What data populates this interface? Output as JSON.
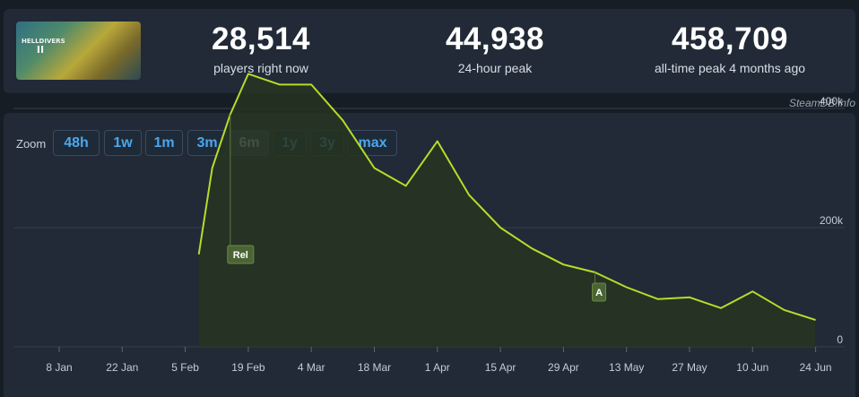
{
  "game": {
    "cover_alt": "HELLDIVERS 2",
    "cover_logo_line1": "HELLDIVERS",
    "cover_logo_line2": "II"
  },
  "stats": [
    {
      "value": "28,514",
      "label": "players right now"
    },
    {
      "value": "44,938",
      "label": "24-hour peak"
    },
    {
      "value": "458,709",
      "label": "all-time peak 4 months ago"
    }
  ],
  "credit": "SteamDB.info",
  "zoom": {
    "label": "Zoom",
    "options": [
      "48h",
      "1w",
      "1m",
      "3m",
      "6m",
      "1y",
      "3y",
      "max"
    ],
    "selected": "6m"
  },
  "chart_data": {
    "type": "area",
    "title": "",
    "xlabel": "",
    "ylabel": "",
    "x_ticks": [
      "8 Jan",
      "22 Jan",
      "5 Feb",
      "19 Feb",
      "4 Mar",
      "18 Mar",
      "1 Apr",
      "15 Apr",
      "29 Apr",
      "13 May",
      "27 May",
      "10 Jun",
      "24 Jun"
    ],
    "y_ticks": [
      "0",
      "200k",
      "400k"
    ],
    "ylim": [
      0,
      600000
    ],
    "grid": true,
    "series": [
      {
        "x": [
          "8 Feb",
          "11 Feb",
          "15 Feb",
          "19 Feb",
          "26 Feb",
          "4 Mar",
          "11 Mar",
          "18 Mar",
          "25 Mar",
          "1 Apr",
          "8 Apr",
          "15 Apr",
          "22 Apr",
          "29 Apr",
          "6 May",
          "13 May",
          "20 May",
          "27 May",
          "3 Jun",
          "10 Jun",
          "17 Jun",
          "24 Jun"
        ],
        "values": [
          155000,
          300000,
          390000,
          458000,
          440000,
          440000,
          380000,
          300000,
          270000,
          345000,
          255000,
          200000,
          165000,
          138000,
          125000,
          100000,
          80000,
          83000,
          65000,
          93000,
          62000,
          45000
        ]
      }
    ],
    "annotations": [
      {
        "label": "Rel",
        "x": "15 Feb"
      },
      {
        "label": "A",
        "x": "6 May"
      }
    ],
    "colors": {
      "line": "#b6dc2a",
      "fill": "#263421",
      "grid": "#34404e",
      "axis_text": "#c4ccd5"
    }
  }
}
